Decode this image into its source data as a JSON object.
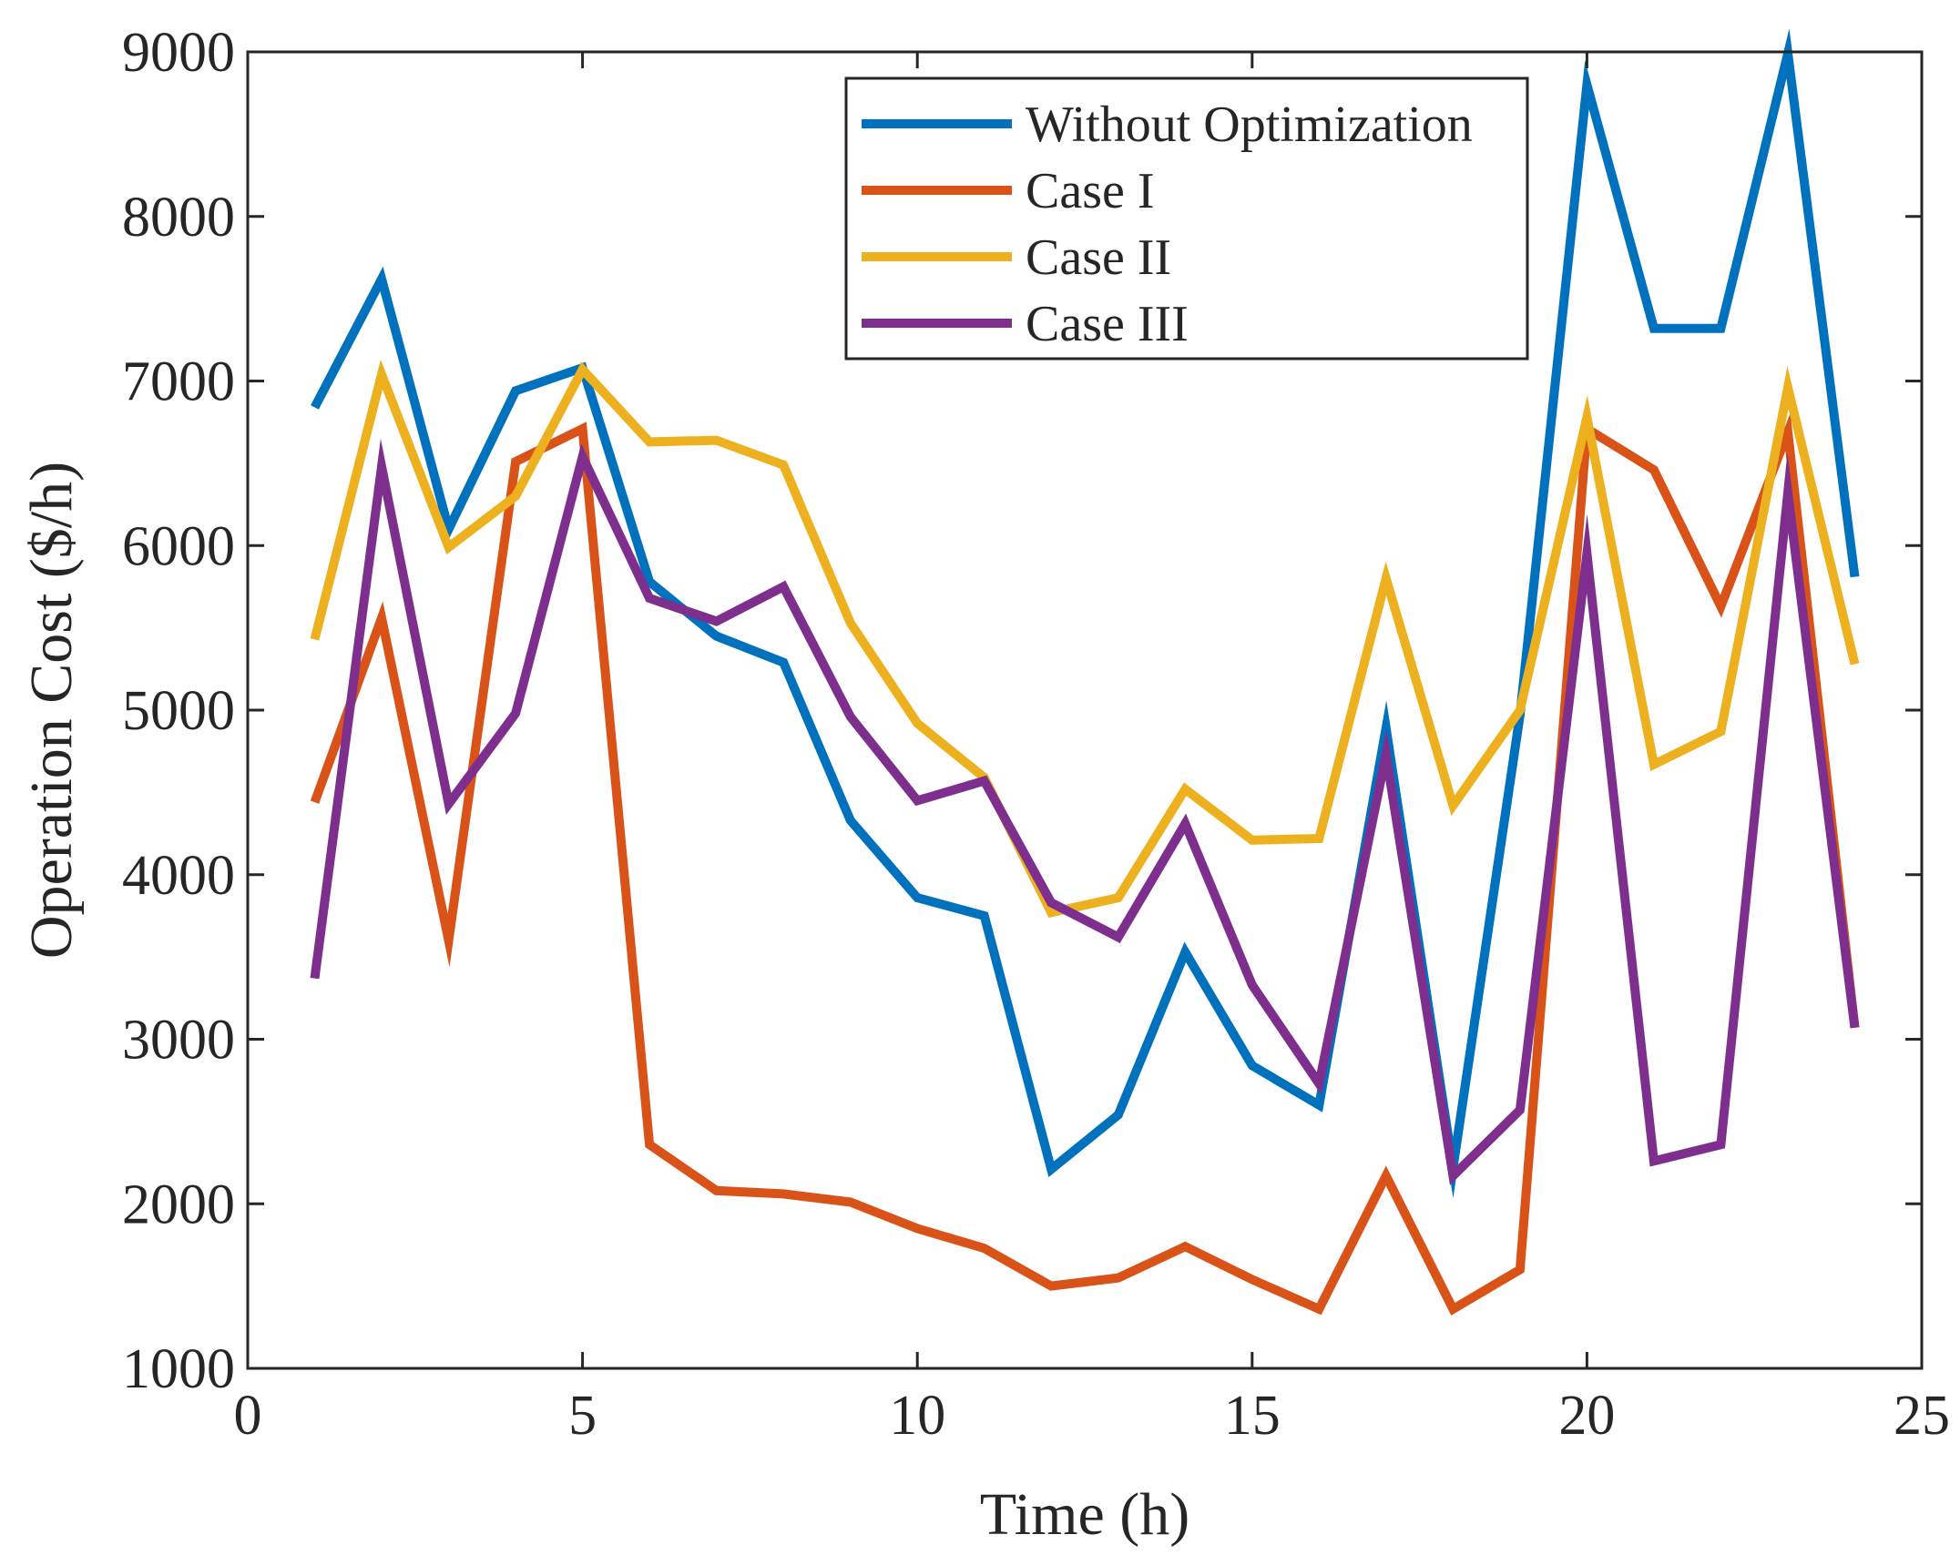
{
  "chart_data": {
    "type": "line",
    "title": "",
    "xlabel": "Time (h)",
    "ylabel": "Operation Cost ($/h)",
    "xlim": [
      0,
      25
    ],
    "ylim": [
      1000,
      9000
    ],
    "xticks": [
      0,
      5,
      10,
      15,
      20,
      25
    ],
    "yticks": [
      1000,
      2000,
      3000,
      4000,
      5000,
      6000,
      7000,
      8000,
      9000
    ],
    "xtick_labels": [
      "0",
      "5",
      "10",
      "15",
      "20",
      "25"
    ],
    "ytick_labels": [
      "1000",
      "2000",
      "3000",
      "4000",
      "5000",
      "6000",
      "7000",
      "8000",
      "9000"
    ],
    "legend_location": "top-right",
    "grid": false,
    "x": [
      1,
      2,
      3,
      4,
      5,
      6,
      7,
      8,
      9,
      10,
      11,
      12,
      13,
      14,
      15,
      16,
      17,
      18,
      19,
      20,
      21,
      22,
      23,
      24
    ],
    "series": [
      {
        "name": "Without Optimization",
        "color": "#0072BD",
        "values": [
          6840,
          7620,
          6100,
          6940,
          7080,
          5780,
          5450,
          5290,
          4330,
          3860,
          3750,
          2210,
          2540,
          3530,
          2840,
          2600,
          4890,
          2220,
          4970,
          8800,
          7320,
          7320,
          8990,
          5810
        ]
      },
      {
        "name": "Case I",
        "color": "#D95319",
        "values": [
          4440,
          5560,
          3600,
          6510,
          6710,
          2360,
          2080,
          2060,
          2010,
          1850,
          1730,
          1500,
          1550,
          1740,
          1540,
          1360,
          2170,
          1360,
          1600,
          6710,
          6460,
          5630,
          6690,
          3070
        ]
      },
      {
        "name": "Case II",
        "color": "#EDB120",
        "values": [
          5430,
          7040,
          5990,
          6300,
          7070,
          6630,
          6640,
          6490,
          5530,
          4920,
          4590,
          3770,
          3860,
          4520,
          4210,
          4220,
          5800,
          4420,
          5000,
          6780,
          4670,
          4870,
          6960,
          5280
        ]
      },
      {
        "name": "Case III",
        "color": "#7E2F8E",
        "values": [
          3370,
          6480,
          4430,
          4980,
          6540,
          5680,
          5540,
          5750,
          4960,
          4450,
          4570,
          3830,
          3620,
          4310,
          3330,
          2730,
          4730,
          2170,
          2570,
          5950,
          2260,
          2360,
          6320,
          3070
        ]
      }
    ]
  }
}
